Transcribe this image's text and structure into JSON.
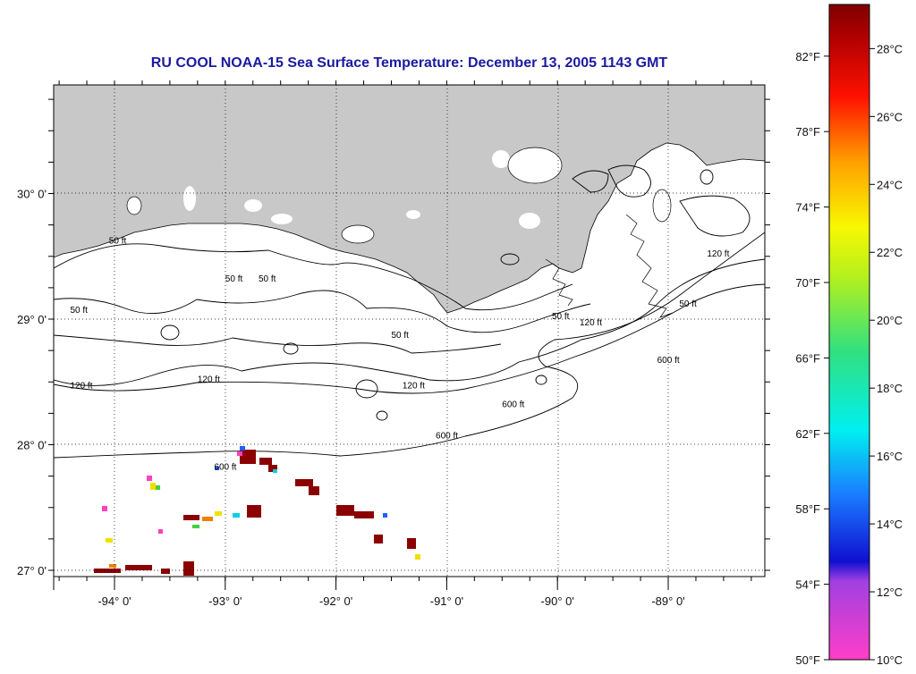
{
  "title": "RU COOL  NOAA-15  Sea Surface Temperature:  December 13, 2005 1143 GMT",
  "map": {
    "lon_range": [
      -94.5,
      -88.1
    ],
    "lat_range": [
      26.95,
      30.85
    ],
    "x_ticks": [
      {
        "lon": -94,
        "label": "-94° 0'"
      },
      {
        "lon": -93,
        "label": "-93° 0'"
      },
      {
        "lon": -92,
        "label": "-92° 0'"
      },
      {
        "lon": -91,
        "label": "-91° 0'"
      },
      {
        "lon": -90,
        "label": "-90° 0'"
      },
      {
        "lon": -89,
        "label": "-89° 0'"
      }
    ],
    "y_ticks": [
      {
        "lat": 30,
        "label": "30° 0'"
      },
      {
        "lat": 29,
        "label": "29° 0'"
      },
      {
        "lat": 28,
        "label": "28° 0'"
      },
      {
        "lat": 27,
        "label": "27° 0'"
      }
    ],
    "land_color": "#c8c8c8",
    "ocean_color": "#ffffff",
    "gridlines": "dotted",
    "contour_labels": [
      {
        "text": "50 ft",
        "lon": -94.05,
        "lat": 29.6
      },
      {
        "text": "50 ft",
        "lon": -93.0,
        "lat": 29.3
      },
      {
        "text": "50 ft",
        "lon": -92.7,
        "lat": 29.3
      },
      {
        "text": "50 ft",
        "lon": -91.5,
        "lat": 28.85
      },
      {
        "text": "50 ft",
        "lon": -90.05,
        "lat": 29.0
      },
      {
        "text": "50 ft",
        "lon": -94.4,
        "lat": 29.05
      },
      {
        "text": "50 ft",
        "lon": -88.9,
        "lat": 29.1
      },
      {
        "text": "120 ft",
        "lon": -94.4,
        "lat": 28.45
      },
      {
        "text": "120 ft",
        "lon": -93.25,
        "lat": 28.5
      },
      {
        "text": "120 ft",
        "lon": -91.4,
        "lat": 28.45
      },
      {
        "text": "120 ft",
        "lon": -89.8,
        "lat": 28.95
      },
      {
        "text": "120 ft",
        "lon": -88.65,
        "lat": 29.5
      },
      {
        "text": "600 ft",
        "lon": -93.1,
        "lat": 27.8
      },
      {
        "text": "600 ft",
        "lon": -91.1,
        "lat": 28.05
      },
      {
        "text": "600 ft",
        "lon": -90.5,
        "lat": 28.3
      },
      {
        "text": "600 ft",
        "lon": -89.1,
        "lat": 28.65
      }
    ],
    "sst_color_key": {
      "dark": "#8b0000",
      "orange": "#f08000",
      "yellow": "#f0e000",
      "green": "#40d040",
      "cyan": "#00d0e0",
      "blue": "#2060ff",
      "pink": "#ff40c0"
    }
  },
  "colorbar": {
    "fahrenheit_labels": [
      "82°F",
      "78°F",
      "74°F",
      "70°F",
      "66°F",
      "62°F",
      "58°F",
      "54°F",
      "50°F"
    ],
    "celsius_labels": [
      "28°C",
      "26°C",
      "24°C",
      "22°C",
      "20°C",
      "18°C",
      "16°C",
      "14°C",
      "12°C",
      "10°C"
    ],
    "range_c": [
      10,
      29.3
    ]
  }
}
